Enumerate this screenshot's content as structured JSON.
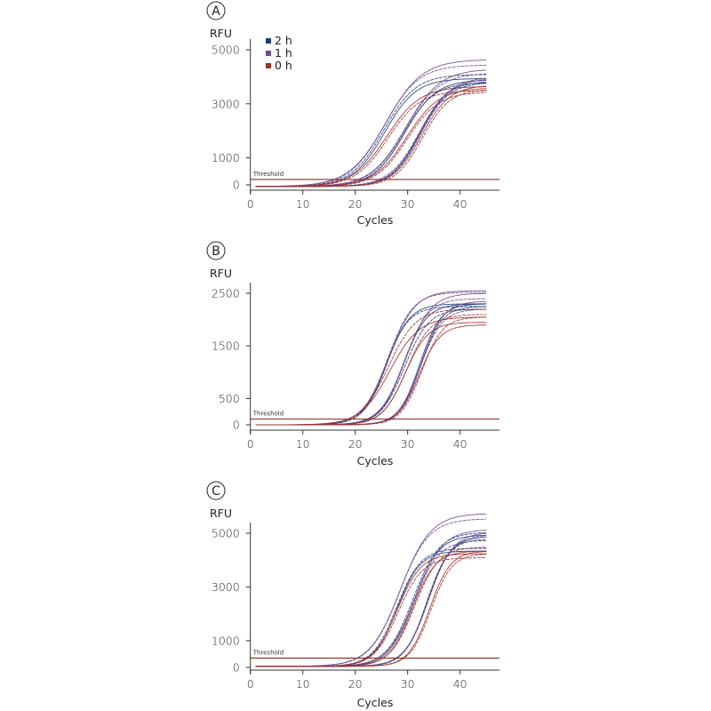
{
  "colors": {
    "2h": "#1f3c78",
    "1h": "#6e4b8c",
    "0h": "#a3302b",
    "threshold": "#8e2f22",
    "axis": "#333333"
  },
  "chart_data": [
    {
      "type": "line",
      "panel_label": "A",
      "ylabel": "RFU",
      "xlabel": "Cycles",
      "xlim": [
        0,
        47.5
      ],
      "ylim": [
        -200,
        5200
      ],
      "x_ticks": [
        0,
        10,
        20,
        30,
        40
      ],
      "y_ticks": [
        0,
        1000,
        3000,
        5000
      ],
      "threshold": {
        "label": "Threshold",
        "value": 200
      },
      "legend": {
        "position": "top-left",
        "entries": [
          {
            "key": "2h",
            "label": "2 h"
          },
          {
            "key": "1h",
            "label": "1 h"
          },
          {
            "key": "0h",
            "label": "0 h"
          }
        ]
      },
      "curve_model": "sigmoid: baseline + plateau / (1 + exp(-(cycle - midpoint)/slope)), cycles 1–45",
      "baseline": -60,
      "series": [
        {
          "group": "2h",
          "midpoint": 25.6,
          "plateau": 4000,
          "slope": 3.0
        },
        {
          "group": "2h",
          "midpoint": 25.4,
          "plateau": 4150,
          "slope": 3.1
        },
        {
          "group": "1h",
          "midpoint": 25.8,
          "plateau": 4700,
          "slope": 3.5
        },
        {
          "group": "1h",
          "midpoint": 25.5,
          "plateau": 4500,
          "slope": 3.3
        },
        {
          "group": "0h",
          "midpoint": 26.0,
          "plateau": 3700,
          "slope": 3.2
        },
        {
          "group": "0h",
          "midpoint": 26.2,
          "plateau": 3550,
          "slope": 3.1
        },
        {
          "group": "2h",
          "midpoint": 29.4,
          "plateau": 3950,
          "slope": 3.0
        },
        {
          "group": "2h",
          "midpoint": 29.2,
          "plateau": 3850,
          "slope": 2.9
        },
        {
          "group": "1h",
          "midpoint": 29.6,
          "plateau": 4350,
          "slope": 3.3
        },
        {
          "group": "1h",
          "midpoint": 29.5,
          "plateau": 4200,
          "slope": 3.2
        },
        {
          "group": "0h",
          "midpoint": 29.8,
          "plateau": 3650,
          "slope": 3.1
        },
        {
          "group": "0h",
          "midpoint": 29.9,
          "plateau": 3500,
          "slope": 3.0
        },
        {
          "group": "2h",
          "midpoint": 32.2,
          "plateau": 3900,
          "slope": 2.7
        },
        {
          "group": "2h",
          "midpoint": 32.4,
          "plateau": 3850,
          "slope": 2.7
        },
        {
          "group": "1h",
          "midpoint": 32.5,
          "plateau": 4000,
          "slope": 2.8
        },
        {
          "group": "1h",
          "midpoint": 32.3,
          "plateau": 4050,
          "slope": 2.9
        },
        {
          "group": "0h",
          "midpoint": 32.6,
          "plateau": 3750,
          "slope": 2.7
        },
        {
          "group": "0h",
          "midpoint": 32.8,
          "plateau": 3600,
          "slope": 2.6
        }
      ]
    },
    {
      "type": "line",
      "panel_label": "B",
      "ylabel": "RFU",
      "xlabel": "Cycles",
      "xlim": [
        0,
        47.5
      ],
      "ylim": [
        -100,
        2700
      ],
      "x_ticks": [
        0,
        10,
        20,
        30,
        40
      ],
      "y_ticks": [
        0,
        500,
        1500,
        2500
      ],
      "threshold": {
        "label": "Threshold",
        "value": 110
      },
      "curve_model": "sigmoid: baseline + plateau / (1 + exp(-(cycle - midpoint)/slope)), cycles 1–45",
      "baseline": 0,
      "series": [
        {
          "group": "2h",
          "midpoint": 26.0,
          "plateau": 2300,
          "slope": 2.2
        },
        {
          "group": "2h",
          "midpoint": 25.8,
          "plateau": 2250,
          "slope": 2.2
        },
        {
          "group": "1h",
          "midpoint": 26.4,
          "plateau": 2550,
          "slope": 2.5
        },
        {
          "group": "1h",
          "midpoint": 26.2,
          "plateau": 2520,
          "slope": 2.4
        },
        {
          "group": "0h",
          "midpoint": 26.6,
          "plateau": 2050,
          "slope": 2.8
        },
        {
          "group": "0h",
          "midpoint": 26.3,
          "plateau": 2200,
          "slope": 2.6
        },
        {
          "group": "2h",
          "midpoint": 29.2,
          "plateau": 2300,
          "slope": 2.2
        },
        {
          "group": "2h",
          "midpoint": 29.4,
          "plateau": 2200,
          "slope": 2.3
        },
        {
          "group": "1h",
          "midpoint": 29.6,
          "plateau": 2500,
          "slope": 2.4
        },
        {
          "group": "1h",
          "midpoint": 29.3,
          "plateau": 2400,
          "slope": 2.3
        },
        {
          "group": "0h",
          "midpoint": 29.5,
          "plateau": 1950,
          "slope": 2.2
        },
        {
          "group": "0h",
          "midpoint": 29.8,
          "plateau": 2100,
          "slope": 2.3
        },
        {
          "group": "2h",
          "midpoint": 32.3,
          "plateau": 2300,
          "slope": 2.0
        },
        {
          "group": "2h",
          "midpoint": 32.5,
          "plateau": 2250,
          "slope": 2.0
        },
        {
          "group": "1h",
          "midpoint": 32.6,
          "plateau": 2350,
          "slope": 2.1
        },
        {
          "group": "1h",
          "midpoint": 32.4,
          "plateau": 2200,
          "slope": 2.1
        },
        {
          "group": "0h",
          "midpoint": 32.2,
          "plateau": 1900,
          "slope": 2.0
        },
        {
          "group": "0h",
          "midpoint": 32.7,
          "plateau": 2050,
          "slope": 2.0
        }
      ]
    },
    {
      "type": "line",
      "panel_label": "C",
      "ylabel": "RFU",
      "xlabel": "Cycles",
      "xlim": [
        0,
        47.5
      ],
      "ylim": [
        -100,
        5500
      ],
      "x_ticks": [
        0,
        10,
        20,
        30,
        40
      ],
      "y_ticks": [
        0,
        1000,
        3000,
        5000
      ],
      "threshold": {
        "label": "Threshold",
        "value": 350
      },
      "curve_model": "sigmoid: baseline + plateau / (1 + exp(-(cycle - midpoint)/slope)), cycles 1–45",
      "baseline": 40,
      "series": [
        {
          "group": "2h",
          "midpoint": 28.0,
          "plateau": 4300,
          "slope": 2.2
        },
        {
          "group": "2h",
          "midpoint": 27.9,
          "plateau": 4400,
          "slope": 2.3
        },
        {
          "group": "1h",
          "midpoint": 28.6,
          "plateau": 5700,
          "slope": 2.9
        },
        {
          "group": "1h",
          "midpoint": 28.4,
          "plateau": 5500,
          "slope": 2.8
        },
        {
          "group": "0h",
          "midpoint": 28.0,
          "plateau": 4200,
          "slope": 2.3
        },
        {
          "group": "0h",
          "midpoint": 28.2,
          "plateau": 4050,
          "slope": 2.3
        },
        {
          "group": "2h",
          "midpoint": 31.2,
          "plateau": 4900,
          "slope": 2.4
        },
        {
          "group": "2h",
          "midpoint": 31.0,
          "plateau": 5000,
          "slope": 2.5
        },
        {
          "group": "1h",
          "midpoint": 31.4,
          "plateau": 5100,
          "slope": 2.6
        },
        {
          "group": "1h",
          "midpoint": 31.1,
          "plateau": 4700,
          "slope": 2.4
        },
        {
          "group": "0h",
          "midpoint": 30.9,
          "plateau": 4300,
          "slope": 2.2
        },
        {
          "group": "0h",
          "midpoint": 31.3,
          "plateau": 4450,
          "slope": 2.3
        },
        {
          "group": "2h",
          "midpoint": 33.8,
          "plateau": 4850,
          "slope": 2.2
        },
        {
          "group": "2h",
          "midpoint": 33.6,
          "plateau": 4750,
          "slope": 2.1
        },
        {
          "group": "1h",
          "midpoint": 34.0,
          "plateau": 5000,
          "slope": 2.3
        },
        {
          "group": "1h",
          "midpoint": 33.9,
          "plateau": 4900,
          "slope": 2.2
        },
        {
          "group": "0h",
          "midpoint": 34.2,
          "plateau": 4300,
          "slope": 2.0
        },
        {
          "group": "0h",
          "midpoint": 34.4,
          "plateau": 4200,
          "slope": 2.0
        }
      ]
    }
  ]
}
